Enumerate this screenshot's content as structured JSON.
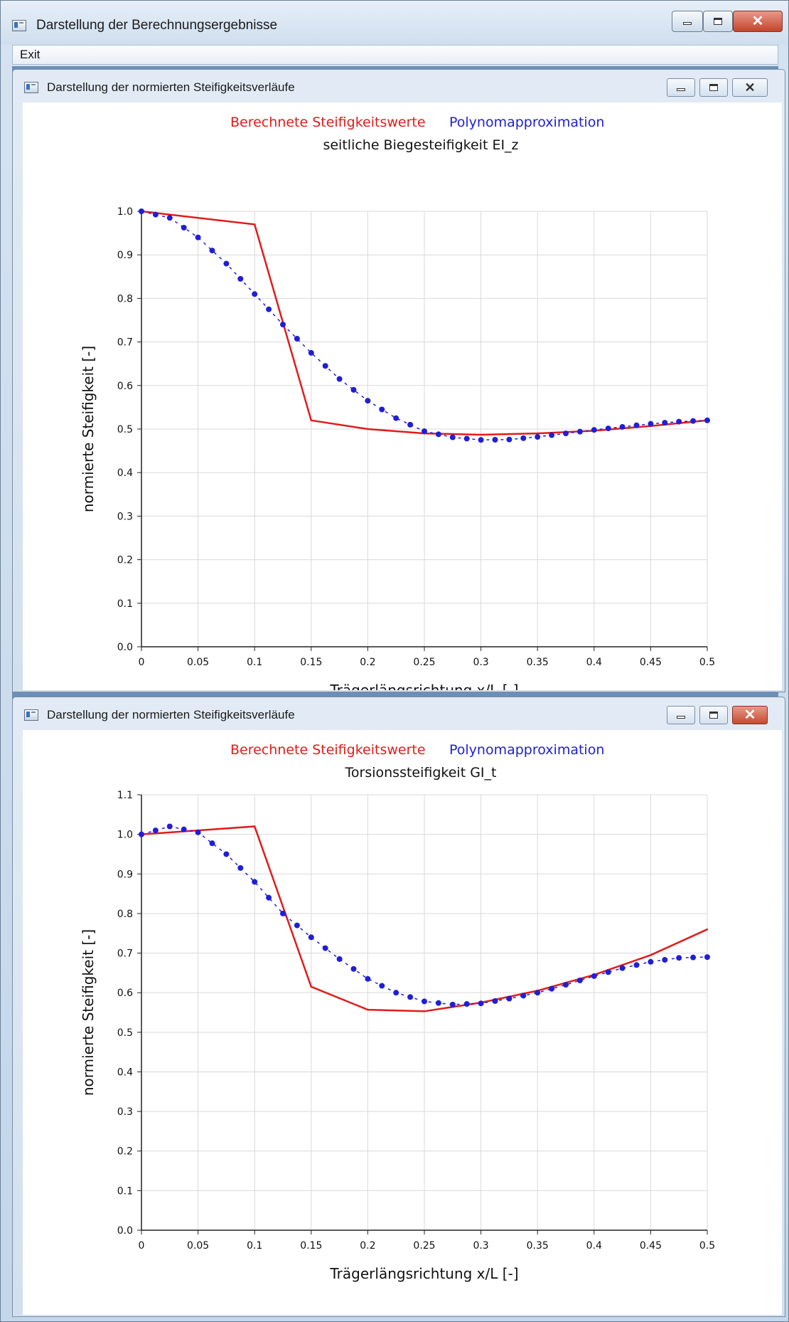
{
  "window": {
    "title": "Darstellung der Berechnungsergebnisse"
  },
  "menu": {
    "exit_label": "Exit"
  },
  "colors": {
    "computed": "#e01c1c",
    "approx": "#1f1fd6",
    "grid": "#d9d9d9"
  },
  "child_windows": [
    {
      "title": "Darstellung der normierten Steifigkeitsverläufe",
      "close_style": "inactive",
      "legend": {
        "computed_label": "Berechnete Steifigkeitswerte",
        "approx_label": "Polynomapproximation"
      }
    },
    {
      "title": "Darstellung der normierten Steifigkeitsverläufe",
      "close_style": "active",
      "legend": {
        "computed_label": "Berechnete Steifigkeitswerte",
        "approx_label": "Polynomapproximation"
      }
    }
  ],
  "chart_data": [
    {
      "type": "line",
      "title": "seitliche Biegesteifigkeit EI_z",
      "xlabel": "Trägerlängsrichtung x/L [-]",
      "ylabel": "normierte Steifigkeit [-]",
      "xlim": [
        0,
        0.5
      ],
      "ylim": [
        0,
        1.0
      ],
      "xticks": [
        "0",
        "0.05",
        "0.1",
        "0.15",
        "0.2",
        "0.25",
        "0.3",
        "0.35",
        "0.4",
        "0.45",
        "0.5"
      ],
      "yticks": [
        "0.0",
        "0.1",
        "0.2",
        "0.3",
        "0.4",
        "0.5",
        "0.6",
        "0.7",
        "0.8",
        "0.9",
        "1.0"
      ],
      "grid": true,
      "legend_position": "top",
      "series": [
        {
          "name": "Berechnete Steifigkeitswerte",
          "style": "solid",
          "x": [
            0,
            0.1,
            0.15,
            0.2,
            0.25,
            0.3,
            0.35,
            0.4,
            0.45,
            0.5
          ],
          "y": [
            1.0,
            0.97,
            0.52,
            0.5,
            0.49,
            0.487,
            0.49,
            0.496,
            0.507,
            0.52
          ]
        },
        {
          "name": "Polynomapproximation",
          "style": "dotted",
          "x": [
            0,
            0.025,
            0.05,
            0.075,
            0.1,
            0.125,
            0.15,
            0.175,
            0.2,
            0.225,
            0.25,
            0.275,
            0.3,
            0.325,
            0.35,
            0.375,
            0.4,
            0.425,
            0.45,
            0.475,
            0.5
          ],
          "y": [
            1.0,
            0.985,
            0.94,
            0.88,
            0.81,
            0.74,
            0.675,
            0.615,
            0.565,
            0.525,
            0.495,
            0.481,
            0.475,
            0.476,
            0.482,
            0.49,
            0.498,
            0.505,
            0.512,
            0.517,
            0.52
          ]
        }
      ]
    },
    {
      "type": "line",
      "title": "Torsionssteifigkeit GI_t",
      "xlabel": "Trägerlängsrichtung x/L [-]",
      "ylabel": "normierte Steifigkeit [-]",
      "xlim": [
        0,
        0.5
      ],
      "ylim": [
        0,
        1.1
      ],
      "xticks": [
        "0",
        "0.05",
        "0.1",
        "0.15",
        "0.2",
        "0.25",
        "0.3",
        "0.35",
        "0.4",
        "0.45",
        "0.5"
      ],
      "yticks": [
        "0.0",
        "0.1",
        "0.2",
        "0.3",
        "0.4",
        "0.5",
        "0.6",
        "0.7",
        "0.8",
        "0.9",
        "1.0",
        "1.1"
      ],
      "grid": true,
      "legend_position": "top",
      "series": [
        {
          "name": "Berechnete Steifigkeitswerte",
          "style": "solid",
          "x": [
            0,
            0.05,
            0.1,
            0.15,
            0.2,
            0.25,
            0.3,
            0.35,
            0.4,
            0.45,
            0.5
          ],
          "y": [
            1.0,
            1.01,
            1.02,
            0.615,
            0.557,
            0.553,
            0.575,
            0.605,
            0.645,
            0.695,
            0.76
          ]
        },
        {
          "name": "Polynomapproximation",
          "style": "dotted",
          "x": [
            0,
            0.025,
            0.05,
            0.075,
            0.1,
            0.125,
            0.15,
            0.175,
            0.2,
            0.225,
            0.25,
            0.275,
            0.3,
            0.325,
            0.35,
            0.375,
            0.4,
            0.425,
            0.45,
            0.475,
            0.5
          ],
          "y": [
            1.0,
            1.02,
            1.005,
            0.95,
            0.88,
            0.8,
            0.74,
            0.685,
            0.635,
            0.6,
            0.578,
            0.57,
            0.573,
            0.585,
            0.6,
            0.62,
            0.642,
            0.662,
            0.678,
            0.688,
            0.69
          ]
        }
      ]
    }
  ]
}
